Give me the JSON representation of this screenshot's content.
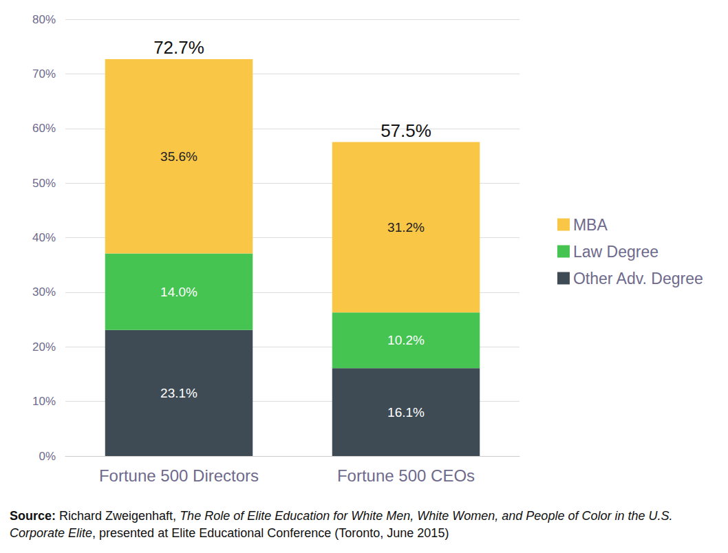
{
  "chart_data": {
    "type": "bar",
    "stacked": true,
    "data_labels": true,
    "grid": true,
    "legend": "right",
    "categories": [
      "Fortune 500 Directors",
      "Fortune 500 CEOs"
    ],
    "series": [
      {
        "name": "Other Adv. Degree",
        "color": "#3e4b55",
        "values": [
          23.1,
          16.1
        ],
        "value_labels": [
          "23.1%",
          "16.1%"
        ]
      },
      {
        "name": "Law Degree",
        "color": "#45c452",
        "values": [
          14.0,
          10.2
        ],
        "value_labels": [
          "14.0%",
          "10.2%"
        ]
      },
      {
        "name": "MBA",
        "color": "#f9c646",
        "values": [
          35.6,
          31.2
        ],
        "value_labels": [
          "35.6%",
          "31.2%"
        ]
      }
    ],
    "totals": [
      72.7,
      57.5
    ],
    "total_labels": [
      "72.7%",
      "57.5%"
    ],
    "ylim": [
      0,
      80
    ],
    "yticks": [
      {
        "value": 0,
        "label": "0%"
      },
      {
        "value": 10,
        "label": "10%"
      },
      {
        "value": 20,
        "label": "20%"
      },
      {
        "value": 30,
        "label": "30%"
      },
      {
        "value": 40,
        "label": "40%"
      },
      {
        "value": 50,
        "label": "50%"
      },
      {
        "value": 60,
        "label": "60%"
      },
      {
        "value": 70,
        "label": "70%"
      },
      {
        "value": 80,
        "label": "80%"
      }
    ],
    "source": {
      "label": "Source:",
      "author": "Richard Zweigenhaft,",
      "title": "The Role of Elite Education for White Men, White Women, and People of Color in the U.S. Corporate Elite",
      "rest": ", presented at Elite Educational Conference (Toronto, June 2015)"
    }
  }
}
